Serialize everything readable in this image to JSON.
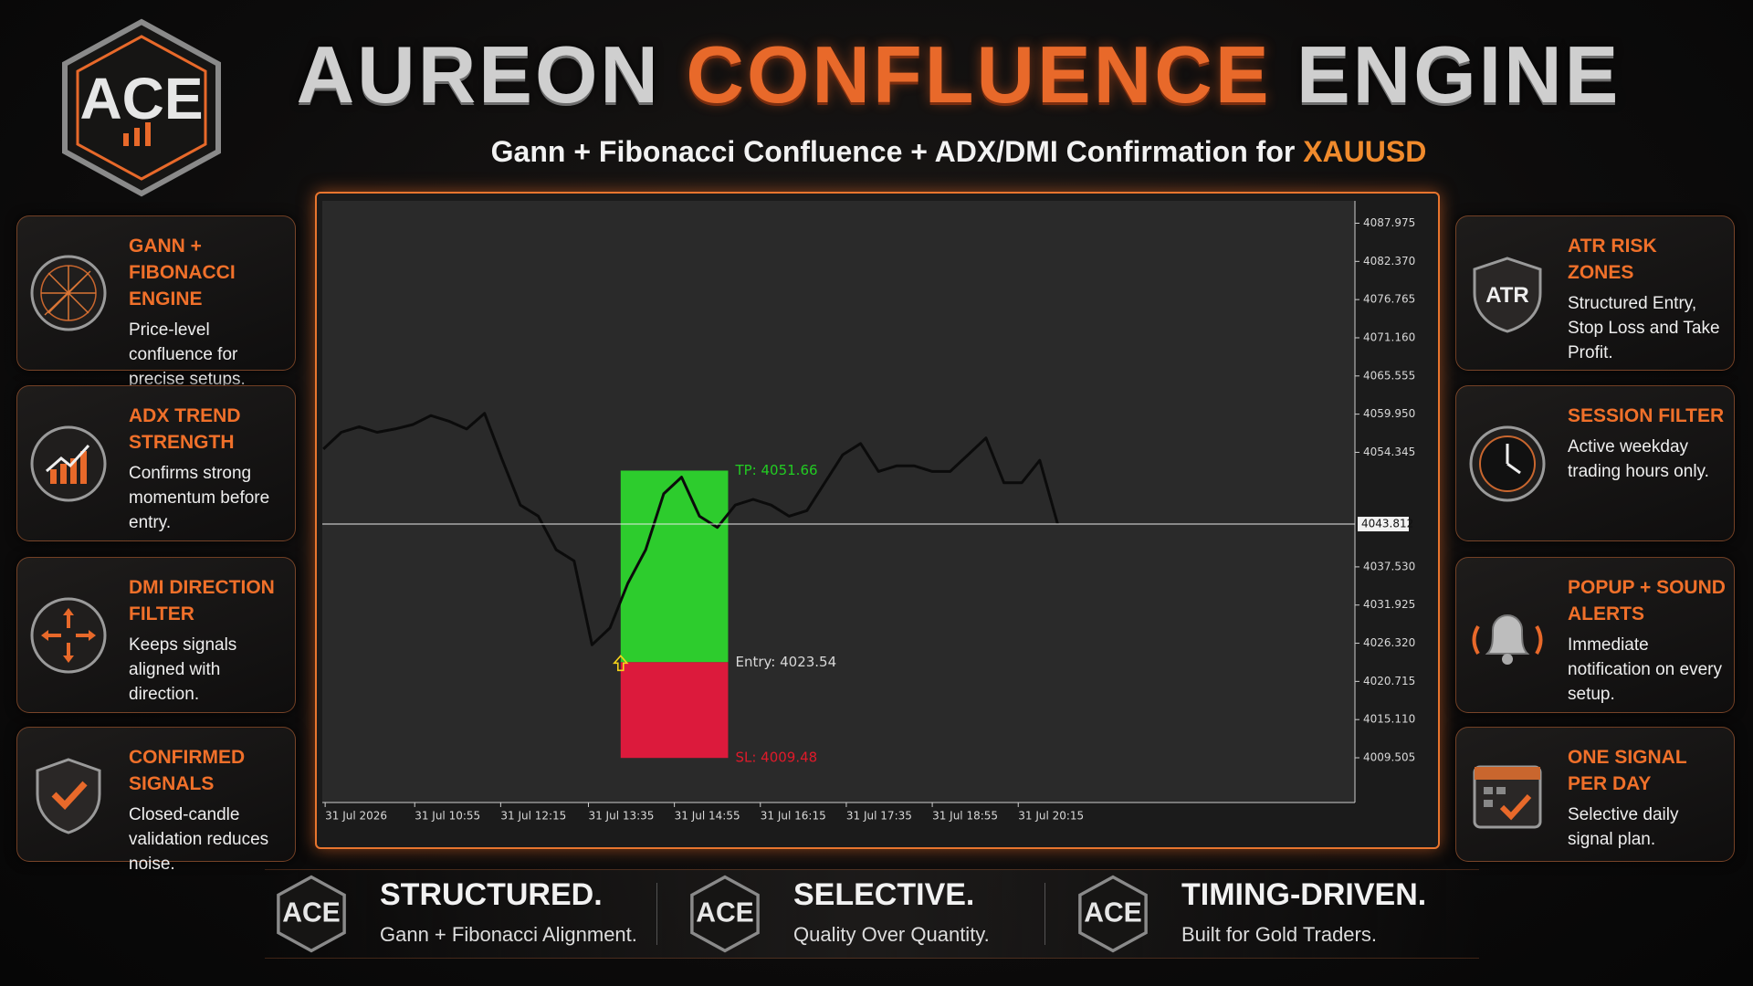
{
  "header": {
    "logo_text": "ACE",
    "title": [
      "AUREON",
      "CONFLUENCE",
      "ENGINE"
    ],
    "subtitle": "Gann + Fibonacci Confluence + ADX/DMI Confirmation for",
    "subtitle_highlight": "XAUUSD"
  },
  "left_features": [
    {
      "title": "GANN + FIBONACCI ENGINE",
      "text": "Price-level confluence for precise setups."
    },
    {
      "title": "ADX TREND STRENGTH",
      "text": "Confirms strong momentum before entry."
    },
    {
      "title": "DMI DIRECTION FILTER",
      "text": "Keeps signals aligned with direction."
    },
    {
      "title": "CONFIRMED SIGNALS",
      "text": "Closed-candle validation reduces noise."
    }
  ],
  "right_features": [
    {
      "title": "ATR RISK ZONES",
      "text": "Structured Entry, Stop Loss and Take Profit.",
      "icon_label": "ATR"
    },
    {
      "title": "SESSION FILTER",
      "text": "Active weekday trading hours only."
    },
    {
      "title": "POPUP + SOUND ALERTS",
      "text": "Immediate notification on every setup."
    },
    {
      "title": "ONE SIGNAL PER DAY",
      "text": "Selective daily signal plan."
    }
  ],
  "footer": [
    {
      "title": "STRUCTURED.",
      "text": "Gann + Fibonacci Alignment."
    },
    {
      "title": "SELECTIVE.",
      "text": "Quality Over Quantity."
    },
    {
      "title": "TIMING-DRIVEN.",
      "text": "Built for Gold Traders."
    }
  ],
  "chart_data": {
    "type": "line",
    "color": "#0b0b0b",
    "x": [
      0,
      1,
      2,
      3,
      4,
      5,
      6,
      7,
      8,
      9,
      10,
      11,
      12,
      13,
      14,
      15,
      16,
      17,
      18,
      19,
      20,
      21,
      22,
      23,
      24,
      25,
      26,
      27,
      28,
      29,
      30,
      31,
      32,
      33,
      34,
      35,
      36,
      37,
      38,
      39,
      40,
      41
    ],
    "values": [
      4054.82,
      4057.28,
      4058.1,
      4057.28,
      4057.77,
      4058.43,
      4059.74,
      4058.92,
      4057.77,
      4060.07,
      4053.17,
      4046.61,
      4044.97,
      4040.04,
      4038.4,
      4026.09,
      4028.55,
      4035.11,
      4040.04,
      4048.25,
      4050.71,
      4044.97,
      4043.32,
      4046.61,
      4047.43,
      4046.61,
      4044.97,
      4045.79,
      4049.89,
      4053.99,
      4055.64,
      4051.53,
      4052.35,
      4052.35,
      4051.53,
      4051.53,
      4053.99,
      4056.46,
      4049.89,
      4049.89,
      4053.17,
      4043.81
    ],
    "xlim": [
      -0.06,
      57.6
    ],
    "ylim": [
      4002.94,
      4091.26
    ],
    "xticks": [
      {
        "value": 0.1,
        "label": "31 Jul 2026"
      },
      {
        "value": 5.1,
        "label": "31 Jul 10:55"
      },
      {
        "value": 9.9,
        "label": "31 Jul 12:15"
      },
      {
        "value": 14.8,
        "label": "31 Jul 13:35"
      },
      {
        "value": 19.6,
        "label": "31 Jul 14:55"
      },
      {
        "value": 24.4,
        "label": "31 Jul 16:15"
      },
      {
        "value": 29.2,
        "label": "31 Jul 17:35"
      },
      {
        "value": 34,
        "label": "31 Jul 18:55"
      },
      {
        "value": 38.8,
        "label": "31 Jul 20:15"
      }
    ],
    "yticks": [
      4087.975,
      {
        "value": 4082.37,
        "label": "4082.370"
      },
      4076.765,
      {
        "value": 4071.16,
        "label": "4071.160"
      },
      4065.555,
      {
        "value": 4059.95,
        "label": "4059.950"
      },
      4054.345,
      {
        "value": 4037.53,
        "label": "4037.530"
      },
      4031.925,
      {
        "value": 4026.32,
        "label": "4026.320"
      },
      4020.715,
      {
        "value": 4015.11,
        "label": "4015.110"
      },
      4009.505
    ],
    "current_price": 4043.812,
    "box_x": [
      16.6,
      22.6
    ],
    "levels": [
      {
        "label": "TP: 4051.66",
        "value": 4051.66,
        "color": "#22cc22"
      },
      {
        "label": "Entry: 4023.54",
        "value": 4023.54,
        "color": "#d8d8d8"
      },
      {
        "label": "SL: 4009.48",
        "value": 4009.48,
        "color": "#e01a2a"
      }
    ],
    "profit_color": "#2dcc2d",
    "loss_color": "#dc1a3c",
    "background": "#2a2a2a"
  }
}
